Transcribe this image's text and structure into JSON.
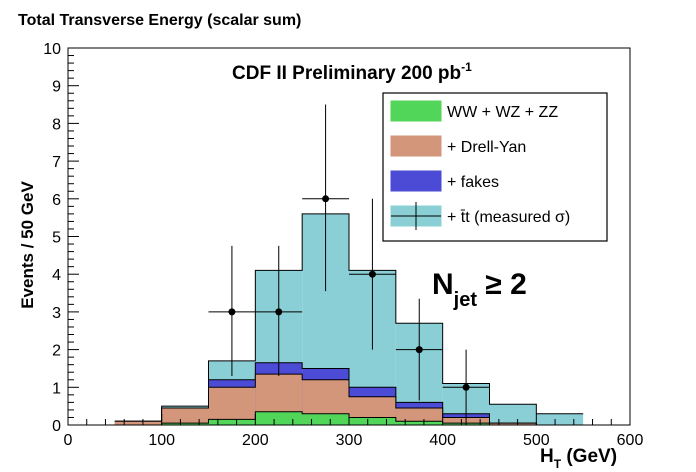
{
  "chart_data": {
    "type": "bar",
    "title": "Total Transverse Energy (scalar sum)",
    "annotation": "CDF II Preliminary  200 pb",
    "annotation_superscript": "-1",
    "xlabel_main": "H",
    "xlabel_sub": "T",
    "xlabel_unit": " (GeV)",
    "ylabel": "Events / 50 GeV",
    "xlim": [
      0,
      600
    ],
    "ylim": [
      0,
      10
    ],
    "x_ticks": [
      "0",
      "100",
      "200",
      "300",
      "400",
      "500",
      "600"
    ],
    "y_ticks": [
      "0",
      "1",
      "2",
      "3",
      "4",
      "5",
      "6",
      "7",
      "8",
      "9",
      "10"
    ],
    "bin_edges": [
      50,
      100,
      150,
      200,
      250,
      300,
      350,
      400,
      450,
      500,
      550
    ],
    "stack_totals": [
      {
        "name": "WW + WZ + ZZ",
        "color": "#52d65a",
        "values": [
          0.0,
          0.05,
          0.15,
          0.35,
          0.3,
          0.2,
          0.1,
          0.05,
          0.0,
          0.0
        ]
      },
      {
        "name": "+ Drell-Yan",
        "color": "#d4967a",
        "values": [
          0.1,
          0.45,
          1.0,
          1.35,
          1.2,
          0.75,
          0.45,
          0.2,
          0.05,
          0.0
        ]
      },
      {
        "name": "+ fakes",
        "color": "#4b4bd6",
        "values": [
          0.1,
          0.45,
          1.2,
          1.65,
          1.5,
          1.0,
          0.6,
          0.3,
          0.05,
          0.0
        ]
      },
      {
        "name": "+ t̄t (measured σ)",
        "color": "#8acfd6",
        "values": [
          0.1,
          0.5,
          1.7,
          4.1,
          5.6,
          4.1,
          2.7,
          1.1,
          0.55,
          0.3
        ]
      }
    ],
    "data_points": {
      "x": [
        175,
        225,
        275,
        325,
        375,
        425
      ],
      "y": [
        3,
        3,
        6,
        4,
        2,
        1
      ],
      "yerr_low": [
        1.7,
        1.7,
        2.45,
        2.0,
        1.35,
        1.0
      ],
      "yerr_high": [
        1.75,
        1.75,
        2.5,
        2.0,
        1.35,
        1.0
      ],
      "xerr": 25
    },
    "legend_position": "top-right",
    "jet_label": "N",
    "jet_label_sub": "jet",
    "jet_label_rel": " ≥ 2"
  }
}
